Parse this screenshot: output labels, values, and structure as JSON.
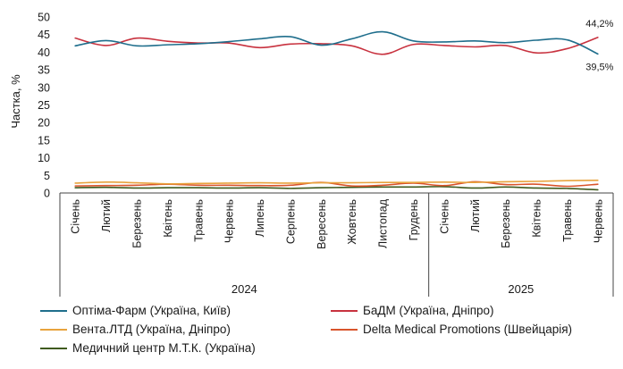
{
  "chart_data": {
    "type": "line",
    "title": "",
    "xlabel": "",
    "ylabel": "Частка, %",
    "ylim": [
      0,
      50
    ],
    "yticks": [
      0,
      5,
      10,
      15,
      20,
      25,
      30,
      35,
      40,
      45,
      50
    ],
    "grid": false,
    "legend_position": "bottom",
    "categories": [
      "Січень",
      "Лютий",
      "Березень",
      "Квітень",
      "Травень",
      "Червень",
      "Липень",
      "Серпень",
      "Вересень",
      "Жовтень",
      "Листопад",
      "Грудень",
      "Січень",
      "Лютий",
      "Березень",
      "Квітень",
      "Травень",
      "Червень"
    ],
    "groups": [
      {
        "label": "2024",
        "count": 12
      },
      {
        "label": "2025",
        "count": 6
      }
    ],
    "series": [
      {
        "name": "Оптіма-Фарм (Україна, Київ)",
        "color": "#1f6e8c",
        "values": [
          41.8,
          43.3,
          41.8,
          42.1,
          42.4,
          43.0,
          43.8,
          44.4,
          42.0,
          43.8,
          45.8,
          43.2,
          42.9,
          43.2,
          42.7,
          43.4,
          43.5,
          39.5
        ]
      },
      {
        "name": "БаДМ (Україна, Дніпро)",
        "color": "#c8323f",
        "values": [
          44.0,
          41.9,
          44.0,
          43.1,
          42.6,
          42.6,
          41.3,
          42.3,
          42.4,
          41.8,
          39.4,
          42.2,
          41.9,
          41.5,
          41.9,
          39.8,
          41.0,
          44.2
        ]
      },
      {
        "name": "Вента.ЛТД (Україна, Дніпро)",
        "color": "#e8a33d",
        "values": [
          2.8,
          3.1,
          2.9,
          2.6,
          2.7,
          2.8,
          2.9,
          2.8,
          2.9,
          2.9,
          3.0,
          3.0,
          3.1,
          3.0,
          3.2,
          3.3,
          3.5,
          3.6
        ]
      },
      {
        "name": "Delta Medical Promotions (Швейцарія)",
        "color": "#d9542b",
        "values": [
          2.0,
          2.1,
          2.2,
          2.5,
          2.2,
          2.2,
          2.1,
          2.2,
          3.0,
          2.0,
          2.2,
          2.8,
          2.1,
          3.2,
          2.4,
          2.5,
          1.9,
          2.5
        ]
      },
      {
        "name": "Медичний центр М.Т.К. (Україна)",
        "color": "#3f5a1e",
        "values": [
          1.5,
          1.6,
          1.4,
          1.5,
          1.5,
          1.4,
          1.5,
          1.3,
          1.5,
          1.6,
          1.7,
          1.7,
          1.8,
          1.4,
          1.7,
          1.4,
          1.3,
          0.9
        ]
      }
    ],
    "data_labels": [
      {
        "series": 1,
        "index": 17,
        "text": "44,2%"
      },
      {
        "series": 0,
        "index": 17,
        "text": "39,5%"
      }
    ]
  }
}
